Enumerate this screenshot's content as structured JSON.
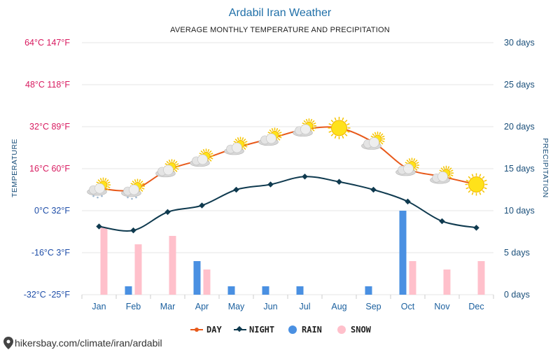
{
  "header": {
    "title": "Ardabil Iran Weather",
    "subtitle": "AVERAGE MONTHLY TEMPERATURE AND PRECIPITATION"
  },
  "footer": {
    "url": "hikersbay.com/climate/iran/ardabil"
  },
  "colors": {
    "day": "#e8591a",
    "night": "#0f3a4f",
    "rain": "#4a90e2",
    "snow": "#ffc0cb",
    "warm_label": "#d81b60",
    "cold_label": "#1f4ea8",
    "grid": "#e6e6e6"
  },
  "chart_data": {
    "type": "line",
    "title": "Ardabil Iran Weather",
    "subtitle": "AVERAGE MONTHLY TEMPERATURE AND PRECIPITATION",
    "categories": [
      "Jan",
      "Feb",
      "Mar",
      "Apr",
      "May",
      "Jun",
      "Jul",
      "Aug",
      "Sep",
      "Oct",
      "Nov",
      "Dec"
    ],
    "y_left": {
      "label": "TEMPERATURE",
      "range_c": [
        -32,
        64
      ],
      "ticks": [
        "64°C 147°F",
        "48°C 118°F",
        "32°C 89°F",
        "16°C 60°F",
        "0°C 32°F",
        "-16°C 3°F",
        "-32°C -25°F"
      ]
    },
    "y_right": {
      "label": "PRECIPITATION",
      "range_days": [
        0,
        30
      ],
      "ticks": [
        "30 days",
        "25 days",
        "20 days",
        "15 days",
        "10 days",
        "5 days",
        "0 days"
      ]
    },
    "series": [
      {
        "name": "DAY",
        "kind": "line",
        "unit": "°C",
        "values": [
          8.5,
          8,
          15.5,
          19.5,
          24,
          27.5,
          31,
          31.5,
          26,
          16,
          13,
          10
        ]
      },
      {
        "name": "NIGHT",
        "kind": "line",
        "unit": "°C",
        "values": [
          -6,
          -7.5,
          -0.5,
          2,
          8,
          10,
          13,
          11,
          8,
          3.5,
          -4,
          -6.5
        ]
      },
      {
        "name": "RAIN",
        "kind": "bar",
        "unit": "days",
        "values": [
          0,
          1,
          0,
          4,
          1,
          1,
          1,
          0,
          1,
          10,
          0,
          0
        ]
      },
      {
        "name": "SNOW",
        "kind": "bar",
        "unit": "days",
        "values": [
          8,
          6,
          7,
          3,
          0,
          0,
          0,
          0,
          0,
          4,
          3,
          4
        ]
      }
    ],
    "icons": [
      "snow-cloud-icon",
      "snow-cloud-icon",
      "partly-cloudy-icon",
      "partly-cloudy-icon",
      "partly-cloudy-icon",
      "partly-cloudy-icon",
      "partly-cloudy-icon",
      "sun-icon",
      "partly-cloudy-icon",
      "partly-cloudy-icon",
      "partly-cloudy-icon",
      "sun-icon"
    ],
    "legend_position": "bottom-center",
    "grid": true
  }
}
